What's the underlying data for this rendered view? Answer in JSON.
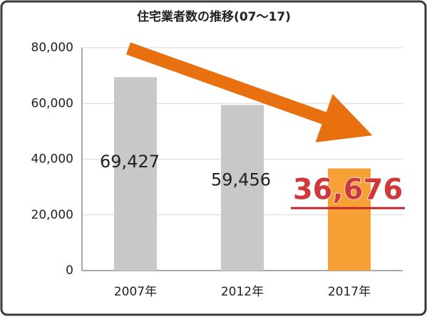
{
  "chart_data": {
    "type": "bar",
    "title": "住宅業者数の推移(07〜17)",
    "categories": [
      "2007年",
      "2012年",
      "2017年"
    ],
    "values": [
      69427,
      59456,
      36676
    ],
    "value_labels": [
      "69,427",
      "59,456",
      "36,676"
    ],
    "colors": [
      "#c8c8c8",
      "#c8c8c8",
      "#f7a035"
    ],
    "ylim": [
      0,
      80000
    ],
    "yticks": [
      0,
      {
        "value": 20000,
        "label": "20,000"
      },
      {
        "value": 40000,
        "label": "40,000"
      },
      {
        "value": 60000,
        "label": "60,000"
      },
      {
        "value": 80000,
        "label": "80,000"
      }
    ],
    "grid": true
  }
}
